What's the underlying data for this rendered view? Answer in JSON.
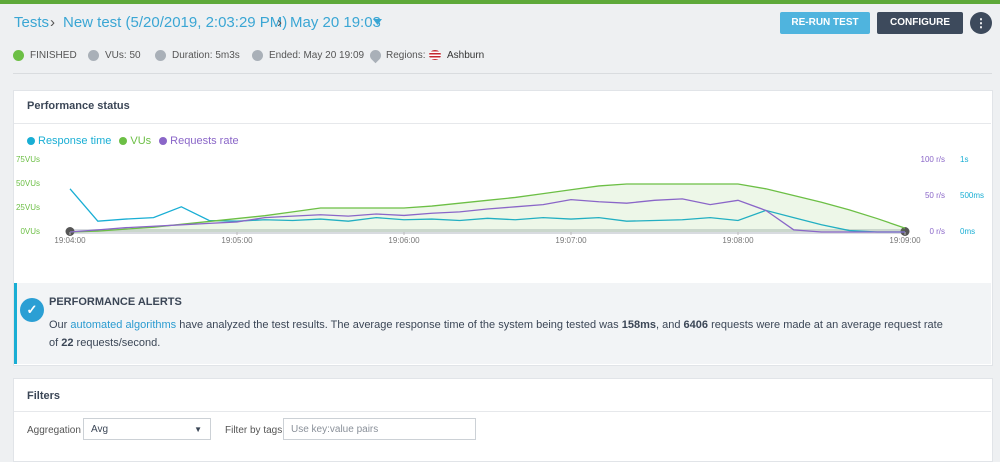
{
  "header": {
    "breadcrumb": [
      "Tests",
      "New test (5/20/2019, 2:03:29 PM)",
      "May 20 19:03"
    ],
    "buttons": [
      "RE-RUN TEST",
      "CONFIGURE"
    ]
  },
  "status": {
    "state": "FINISHED",
    "vus": "VUs: 50",
    "duration": "Duration: 5m3s",
    "ended": "Ended: May 20 19:09",
    "regions_label": "Regions:",
    "region": "Ashburn"
  },
  "performance": {
    "title": "Performance status",
    "chart_data": {
      "type": "line",
      "x": [
        "19:04:00",
        "19:04:10",
        "19:04:20",
        "19:04:30",
        "19:04:40",
        "19:04:50",
        "19:05:00",
        "19:05:10",
        "19:05:20",
        "19:05:30",
        "19:05:40",
        "19:05:50",
        "19:06:00",
        "19:06:10",
        "19:06:20",
        "19:06:30",
        "19:06:40",
        "19:06:50",
        "19:07:00",
        "19:07:10",
        "19:07:20",
        "19:07:30",
        "19:07:40",
        "19:07:50",
        "19:08:00",
        "19:08:10",
        "19:08:20",
        "19:08:30",
        "19:08:40",
        "19:08:50",
        "19:09:00"
      ],
      "series": [
        {
          "name": "Response time",
          "color": "#19aed4",
          "axis": "y3",
          "values": [
            600,
            150,
            180,
            200,
            350,
            160,
            150,
            170,
            160,
            180,
            150,
            200,
            170,
            180,
            160,
            190,
            170,
            200,
            180,
            200,
            150,
            160,
            170,
            200,
            160,
            300,
            200,
            100,
            20,
            0,
            0
          ]
        },
        {
          "name": "VUs",
          "color": "#6cbf45",
          "axis": "y",
          "area": true,
          "values": [
            0,
            1,
            3,
            5,
            8,
            11,
            14,
            17,
            21,
            25,
            25,
            25,
            25,
            27,
            30,
            33,
            36,
            40,
            44,
            48,
            50,
            50,
            50,
            50,
            50,
            45,
            38,
            31,
            23,
            14,
            4
          ]
        },
        {
          "name": "Requests rate",
          "color": "#8a66c8",
          "axis": "y2",
          "values": [
            0,
            3,
            6,
            8,
            10,
            12,
            14,
            20,
            22,
            24,
            22,
            25,
            23,
            26,
            28,
            32,
            35,
            38,
            45,
            42,
            40,
            44,
            46,
            38,
            44,
            30,
            3,
            0,
            0,
            0,
            0
          ]
        }
      ],
      "xlim": [
        "19:04:00",
        "19:09:00"
      ],
      "xticks": [
        "19:04:00",
        "19:05:00",
        "19:06:00",
        "19:07:00",
        "19:08:00",
        "19:09:00"
      ],
      "ylim": [
        0,
        75
      ],
      "yticks": [
        {
          "value": 0,
          "label": "0VUs"
        },
        {
          "value": 25,
          "label": "25VUs"
        },
        {
          "value": 50,
          "label": "50VUs"
        },
        {
          "value": 75,
          "label": "75VUs"
        }
      ],
      "y2lim": [
        0,
        100
      ],
      "y2ticks": [
        {
          "value": 0,
          "label": "0 r/s"
        },
        {
          "value": 50,
          "label": "50 r/s"
        },
        {
          "value": 100,
          "label": "100 r/s"
        }
      ],
      "y3lim": [
        0,
        1000
      ],
      "y3ticks": [
        {
          "value": 0,
          "label": "0ms"
        },
        {
          "value": 500,
          "label": "500ms"
        },
        {
          "value": 1000,
          "label": "1s"
        }
      ],
      "grid": false
    }
  },
  "alerts": {
    "title": "PERFORMANCE ALERTS",
    "text": [
      "Our ",
      "automated algorithms",
      " have analyzed the test results. The average response time of the system being tested was ",
      "158ms",
      ", and ",
      "6406",
      " requests were made at an average request rate of ",
      "22",
      " requests/second."
    ]
  },
  "filters": {
    "title": "Filters",
    "aggregation_label": "Aggregation",
    "aggregation": "Avg",
    "tags_label": "Filter by tags",
    "tags_placeholder": "Use key:value pairs"
  }
}
